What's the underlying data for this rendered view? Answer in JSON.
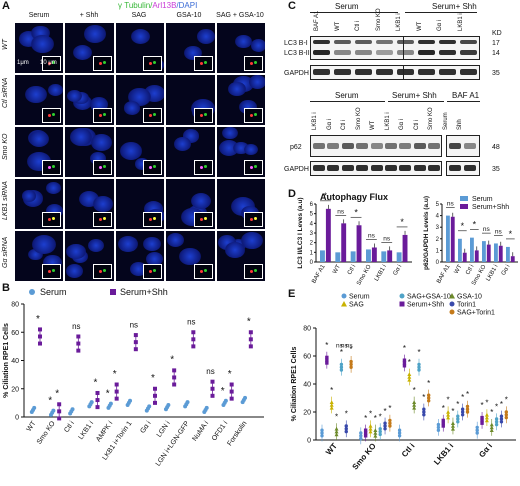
{
  "panelA": {
    "label": "A",
    "stain_a": "γ Tubulin/",
    "stain_b": "Arl13B",
    "stain_c": "/DAPI",
    "columns": [
      "Serum",
      "+ Shh",
      "SAG",
      "GSA-10",
      "SAG + GSA-10"
    ],
    "rows": [
      "WT",
      "Ctl siRNA",
      "Smo KO",
      "LKB1 siRNA",
      "Gα siRNA"
    ],
    "scale_inset": "1μm",
    "scale_main": "10 μm"
  },
  "panelB": {
    "label": "B",
    "legend": [
      "Serum",
      "Serum+Shh"
    ],
    "ylabel": "% Ciliation RPE1 Cells",
    "categories": [
      "WT",
      "Smo KO",
      "Ctl i",
      "LKB1 i",
      "AMPK i",
      "LKB1 i+Torin 1",
      "Gα i",
      "LGN i",
      "LGN i+LGN-GFP",
      "NuMA i",
      "OFD1 i",
      "Forskolin"
    ],
    "sig": [
      "*",
      "*",
      "ns",
      "*",
      "*",
      "ns",
      "*",
      "*",
      "ns",
      "ns",
      "*",
      "*"
    ],
    "sig2": [
      "",
      "*",
      "",
      "",
      "*",
      "",
      "",
      "",
      "",
      "",
      "*",
      ""
    ]
  },
  "panelC": {
    "label": "C",
    "top_groups": [
      "Serum",
      "Serum+ Shh"
    ],
    "top_lanes": [
      "BAF A1",
      "WT",
      "Ctl i",
      "Smo KO",
      "LKB1 i",
      "WT",
      "Gα i",
      "LKB1 i"
    ],
    "bands_top": [
      "LC3 B-I",
      "LC3 B-II",
      "GAPDH"
    ],
    "kd_top": [
      "17",
      "14",
      "35"
    ],
    "kd_header": "KD",
    "bottom_groups": [
      "Serum",
      "Serum+ Shh",
      "BAF A1"
    ],
    "bottom_lanes": [
      "LKB1 i",
      "Gα i",
      "Ctl i",
      "Smo KO",
      "WT",
      "LKB1 i",
      "Gα i",
      "Ctl i",
      "Smo KO",
      "Serum",
      "Shh"
    ],
    "bands_bottom": [
      "p62",
      "GAPDH"
    ],
    "kd_bottom": [
      "48",
      "35"
    ]
  },
  "panelD": {
    "label": "D",
    "title": "Autophagy Flux",
    "legend": [
      "Serum",
      "Serum+Shh"
    ],
    "ylabel_left": "LC3 II/LC3 I Leves (a.u)",
    "ylabel_right": "p62/GAPDH Levels (a.u)",
    "categories": [
      "BAF A1",
      "WT",
      "Ctl i",
      "Smo KO",
      "LKB1 i",
      "Gα i"
    ],
    "sig_left": [
      "*",
      "ns",
      "*",
      "ns",
      "ns",
      "*"
    ],
    "sig_right": [
      "ns",
      "*",
      "*",
      "ns",
      "ns",
      "*"
    ]
  },
  "panelE": {
    "label": "E",
    "legend": [
      "Serum",
      "SAG",
      "SAG+GSA-10",
      "Serum+Shh",
      "GSA-10",
      "Torin1",
      "SAG+Torin1"
    ],
    "ylabel": "% Ciliation RPE1 Cells",
    "categories": [
      "WT",
      "Smo KO",
      "Ctl i",
      "LKB1 i",
      "Gα i"
    ],
    "sig_top": [
      "ns",
      "ns",
      "ns"
    ]
  },
  "colors": {
    "serum": "#5b9bd5",
    "shh": "#6a1b9a",
    "sag": "#c9b200",
    "gsa": "#6d8a2a",
    "torin": "#3949ab",
    "sagtorin": "#c47a1a",
    "sag_gsa": "#4fa3c7",
    "green_title": "#38b838",
    "magenta_title": "#c93ad6",
    "blue_title": "#3a6bd6"
  },
  "chart_data": [
    {
      "type": "scatter",
      "title": "",
      "ylabel": "% Ciliation RPE1 Cells",
      "ylim": [
        0,
        80
      ],
      "yticks": [
        0,
        20,
        40,
        60,
        80
      ],
      "categories": [
        "WT",
        "Smo KO",
        "Ctl i",
        "LKB1 i",
        "AMPK i",
        "LKB1 i+Torin 1",
        "Gα i",
        "LGN i",
        "LGN i+LGN-GFP",
        "NuMA i",
        "OFD1 i",
        "Forskolin"
      ],
      "series": [
        {
          "name": "Serum",
          "values": [
            5,
            3,
            4,
            9,
            8,
            10,
            6,
            7,
            9,
            5,
            10,
            12
          ]
        },
        {
          "name": "Serum+Shh",
          "values": [
            57,
            4,
            52,
            12,
            18,
            53,
            15,
            28,
            55,
            20,
            18,
            55
          ]
        }
      ]
    },
    {
      "type": "bar",
      "title": "Autophagy Flux",
      "ylabel": "LC3 II/LC3 I Leves (a.u)",
      "ylim": [
        0,
        6
      ],
      "yticks": [
        0,
        1,
        2,
        3,
        4,
        5,
        6
      ],
      "categories": [
        "BAF A1",
        "WT",
        "Ctl i",
        "Smo KO",
        "LKB1 i",
        "Gα i"
      ],
      "series": [
        {
          "name": "Serum",
          "values": [
            1.2,
            1.0,
            1.1,
            1.3,
            1.1,
            1.0
          ]
        },
        {
          "name": "Serum+Shh",
          "values": [
            5.5,
            4.0,
            3.8,
            1.5,
            1.2,
            2.8
          ]
        }
      ]
    },
    {
      "type": "bar",
      "title": "",
      "ylabel": "p62/GAPDH Levels (a.u)",
      "ylim": [
        0,
        5
      ],
      "yticks": [
        0,
        1,
        2,
        3,
        4,
        5
      ],
      "categories": [
        "BAF A1",
        "WT",
        "Ctl i",
        "Smo KO",
        "LKB1 i",
        "Gα i"
      ],
      "series": [
        {
          "name": "Serum",
          "values": [
            4.0,
            2.0,
            2.1,
            1.8,
            1.6,
            1.3
          ]
        },
        {
          "name": "Serum+Shh",
          "values": [
            3.9,
            0.8,
            1.0,
            1.5,
            1.4,
            0.5
          ]
        }
      ]
    },
    {
      "type": "scatter",
      "title": "",
      "ylabel": "% Ciliation RPE1 Cells",
      "ylim": [
        0,
        80
      ],
      "yticks": [
        0,
        20,
        40,
        60,
        80
      ],
      "categories": [
        "WT",
        "Smo KO",
        "Ctl i",
        "LKB1 i",
        "Gα i"
      ],
      "series": [
        {
          "name": "Serum",
          "values": [
            5,
            3,
            5,
            9,
            7
          ]
        },
        {
          "name": "Serum+Shh",
          "values": [
            57,
            5,
            55,
            12,
            14
          ]
        },
        {
          "name": "SAG",
          "values": [
            25,
            8,
            45,
            18,
            16
          ]
        },
        {
          "name": "GSA-10",
          "values": [
            6,
            5,
            25,
            10,
            9
          ]
        },
        {
          "name": "SAG+GSA-10",
          "values": [
            52,
            6,
            52,
            15,
            13
          ]
        },
        {
          "name": "Torin1",
          "values": [
            8,
            10,
            20,
            20,
            15
          ]
        },
        {
          "name": "SAG+Torin1",
          "values": [
            54,
            12,
            30,
            22,
            18
          ]
        }
      ]
    }
  ]
}
